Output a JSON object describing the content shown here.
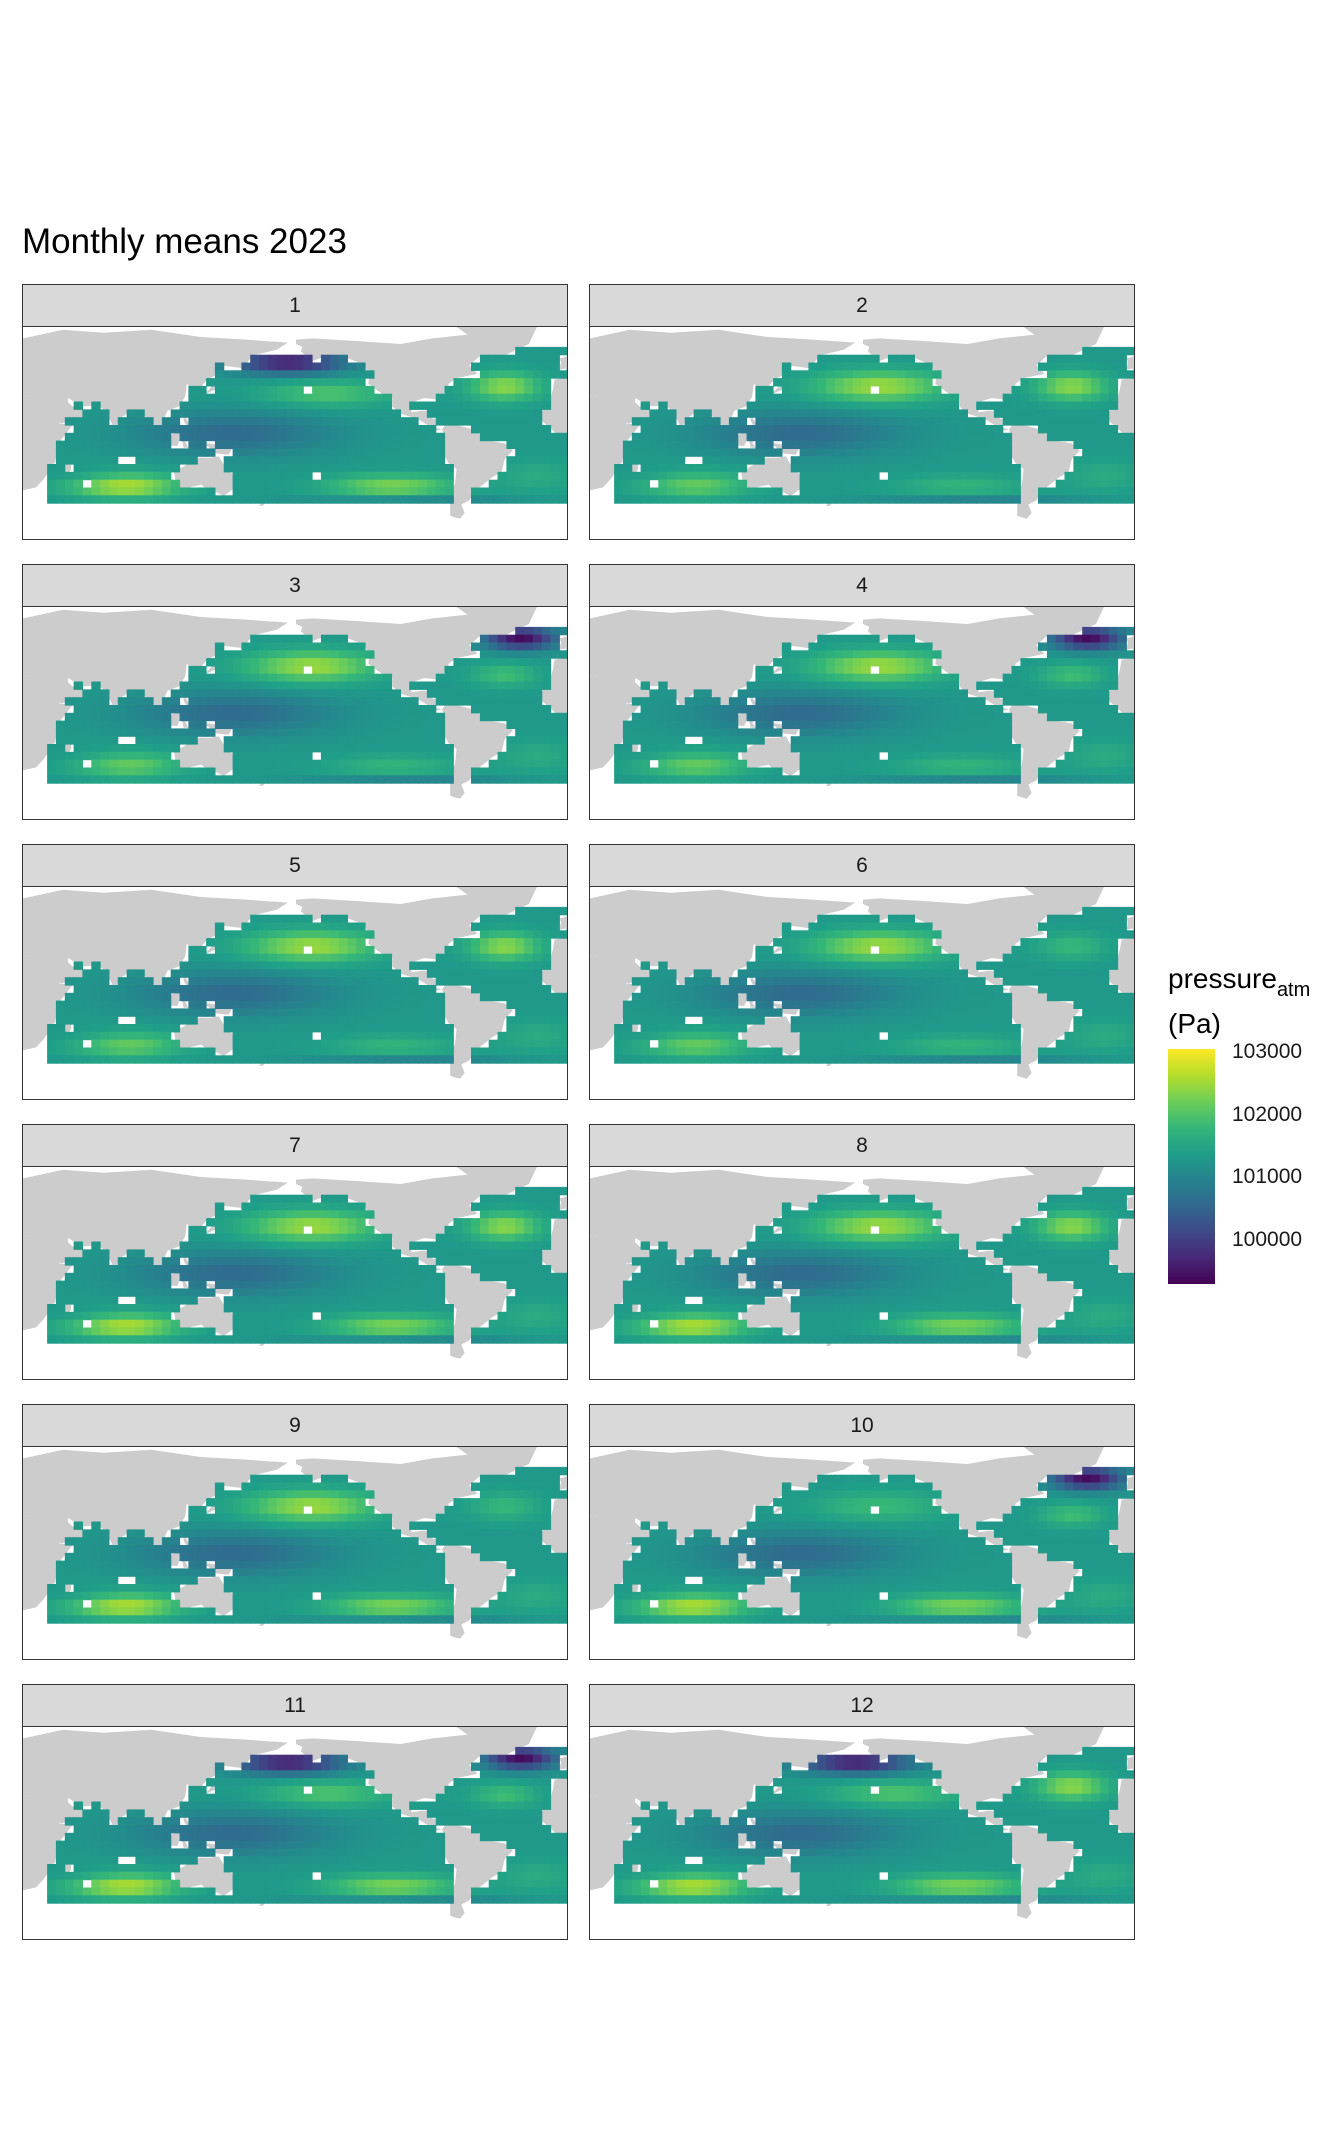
{
  "chart_data": {
    "type": "heatmap",
    "title": "Monthly means 2023",
    "facet_variable": "month",
    "facets": [
      "1",
      "2",
      "3",
      "4",
      "5",
      "6",
      "7",
      "8",
      "9",
      "10",
      "11",
      "12"
    ],
    "legend": {
      "title_main": "pressure",
      "title_sub": "atm",
      "title_unit": "(Pa)",
      "placement": "right",
      "colormap": "viridis",
      "range": [
        99300,
        103050
      ],
      "breaks": [
        100000,
        101000,
        102000,
        103000
      ],
      "break_labels": [
        "100000",
        "101000",
        "102000",
        "103000"
      ]
    },
    "map": {
      "land_color": "#cccccc",
      "region": "Pacific, Indian and Atlantic oceans (Pacific-centred)"
    },
    "monthly_features": [
      {
        "month": "1",
        "north_pacific": "low",
        "north_atlantic": "high",
        "south_pacific": "high"
      },
      {
        "month": "2",
        "north_pacific": "high",
        "north_atlantic": "high",
        "south_pacific": "moderate"
      },
      {
        "month": "3",
        "north_pacific": "high",
        "north_atlantic": "low",
        "south_pacific": "moderate"
      },
      {
        "month": "4",
        "north_pacific": "high",
        "north_atlantic": "low",
        "south_pacific": "moderate"
      },
      {
        "month": "5",
        "north_pacific": "high",
        "north_atlantic": "high",
        "south_pacific": "moderate"
      },
      {
        "month": "6",
        "north_pacific": "high",
        "north_atlantic": "moderate",
        "south_pacific": "moderate"
      },
      {
        "month": "7",
        "north_pacific": "high",
        "north_atlantic": "high",
        "south_pacific": "high"
      },
      {
        "month": "8",
        "north_pacific": "high",
        "north_atlantic": "high",
        "south_pacific": "high"
      },
      {
        "month": "9",
        "north_pacific": "high",
        "north_atlantic": "moderate",
        "south_pacific": "high"
      },
      {
        "month": "10",
        "north_pacific": "moderate",
        "north_atlantic": "low",
        "south_pacific": "high"
      },
      {
        "month": "11",
        "north_pacific": "low",
        "north_atlantic": "low",
        "south_pacific": "high"
      },
      {
        "month": "12",
        "north_pacific": "low",
        "north_atlantic": "high",
        "south_pacific": "high"
      }
    ]
  }
}
